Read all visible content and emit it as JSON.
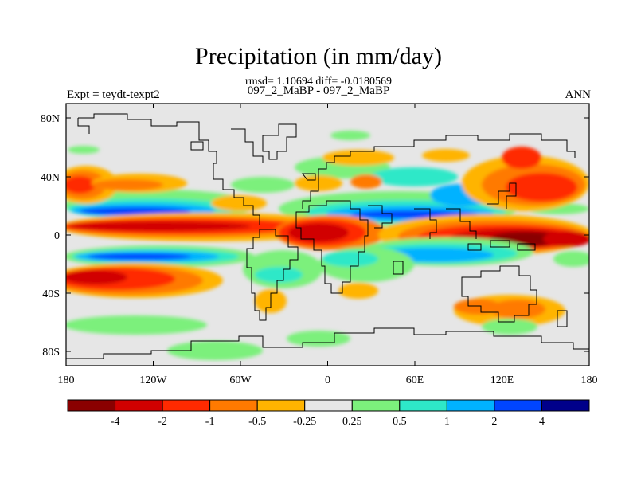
{
  "header": {
    "title": "Precipitation (in mm/day)",
    "stats": "rmsd= 1.10694 diff= -0.0180569",
    "cases": "097_2_MaBP - 097_2_MaBP",
    "left_label": "Expt = teydt-texpt2",
    "right_label": "ANN"
  },
  "map": {
    "lon_ticks": [
      "180",
      "120W",
      "60W",
      "0",
      "60E",
      "120E",
      "180"
    ],
    "lat_ticks": [
      "80N",
      "40N",
      "0",
      "40S",
      "80S"
    ],
    "background_color": "#e6e6e6"
  },
  "colorbar": {
    "colors": [
      "#8a0000",
      "#d10000",
      "#ff2a00",
      "#ff7a00",
      "#ffb400",
      "#e6e6e6",
      "#7cf07c",
      "#2ee8c8",
      "#00b2ff",
      "#0045ff",
      "#00008a"
    ],
    "labels": [
      "-4",
      "-2",
      "-1",
      "-0.5",
      "-0.25",
      "0.25",
      "0.5",
      "1",
      "2",
      "4"
    ]
  }
}
